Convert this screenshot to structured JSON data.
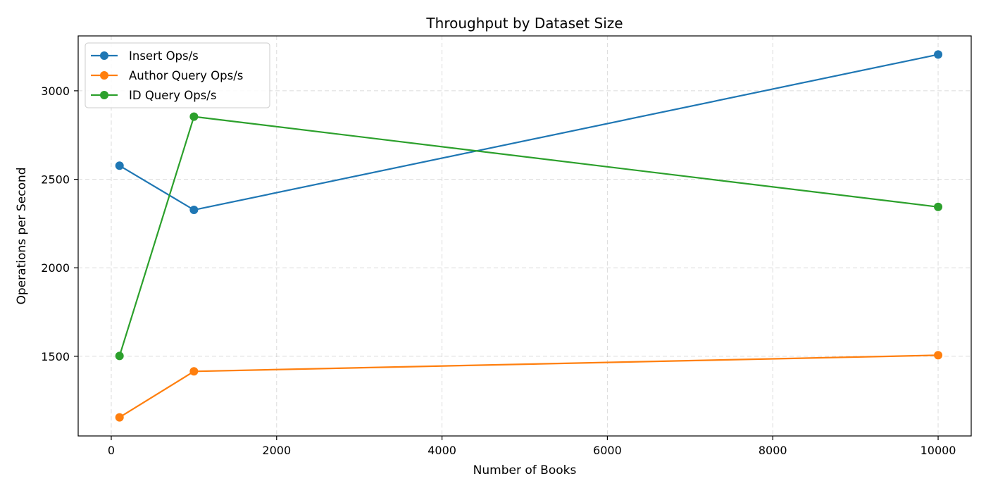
{
  "chart_data": {
    "type": "line",
    "title": "Throughput by Dataset Size",
    "xlabel": "Number of Books",
    "ylabel": "Operations per Second",
    "x": [
      100,
      1000,
      10000
    ],
    "xlim": [
      -400,
      10400
    ],
    "ylim": [
      1050,
      3310
    ],
    "xticks": [
      0,
      2000,
      4000,
      6000,
      8000,
      10000
    ],
    "yticks": [
      1500,
      2000,
      2500,
      3000
    ],
    "grid": true,
    "legend": "top-left",
    "series": [
      {
        "name": "Insert Ops/s",
        "color": "#1f77b4",
        "values": [
          2577,
          2327,
          3205
        ]
      },
      {
        "name": "Author Query Ops/s",
        "color": "#ff7f0e",
        "values": [
          1155,
          1415,
          1506
        ]
      },
      {
        "name": "ID Query Ops/s",
        "color": "#2ca02c",
        "values": [
          1502,
          2854,
          2344
        ]
      }
    ]
  }
}
